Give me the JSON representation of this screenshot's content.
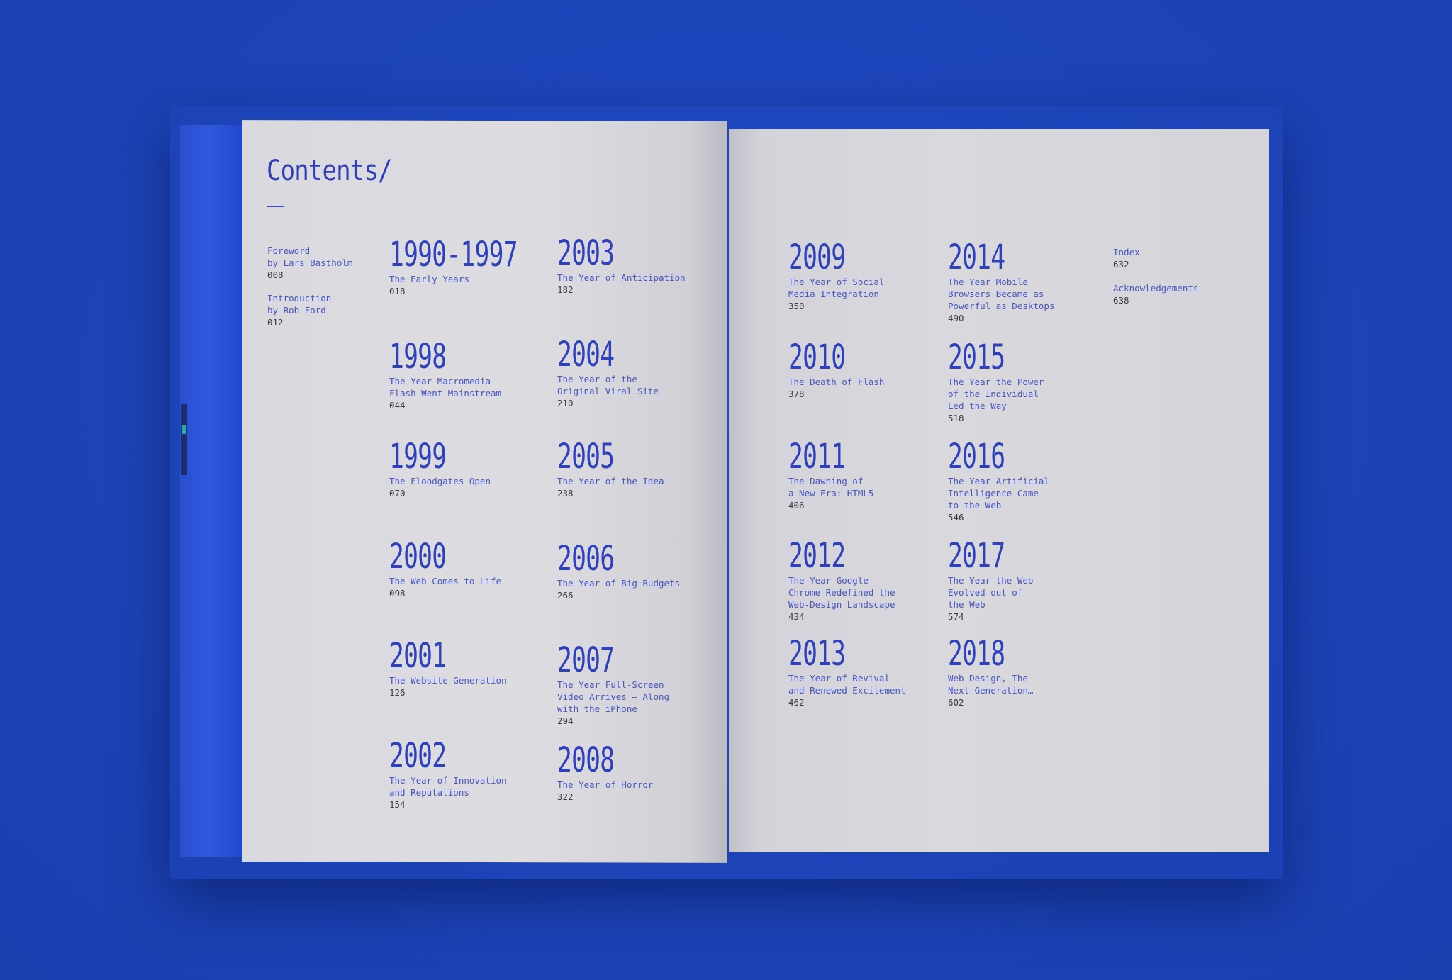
{
  "title": "Contents/",
  "front_matter": [
    {
      "label": "Foreword\nby Lars Bastholm",
      "page": "008"
    },
    {
      "label": "Introduction\nby Rob Ford",
      "page": "012"
    }
  ],
  "back_matter": [
    {
      "label": "Index",
      "page": "632"
    },
    {
      "label": "Acknowledgements",
      "page": "638"
    }
  ],
  "chapters": [
    {
      "year": "1990-1997",
      "title": "The Early Years",
      "page": "018"
    },
    {
      "year": "1998",
      "title": "The Year Macromedia\nFlash Went Mainstream",
      "page": "044"
    },
    {
      "year": "1999",
      "title": "The Floodgates Open",
      "page": "070"
    },
    {
      "year": "2000",
      "title": "The Web Comes to Life",
      "page": "098"
    },
    {
      "year": "2001",
      "title": "The Website Generation",
      "page": "126"
    },
    {
      "year": "2002",
      "title": "The Year of Innovation\nand Reputations",
      "page": "154"
    },
    {
      "year": "2003",
      "title": "The Year of Anticipation",
      "page": "182"
    },
    {
      "year": "2004",
      "title": "The Year of the\nOriginal Viral Site",
      "page": "210"
    },
    {
      "year": "2005",
      "title": "The Year of the Idea",
      "page": "238"
    },
    {
      "year": "2006",
      "title": "The Year of Big Budgets",
      "page": "266"
    },
    {
      "year": "2007",
      "title": "The Year Full-Screen\nVideo Arrives – Along\nwith the iPhone",
      "page": "294"
    },
    {
      "year": "2008",
      "title": "The Year of Horror",
      "page": "322"
    },
    {
      "year": "2009",
      "title": "The Year of Social\nMedia Integration",
      "page": "350"
    },
    {
      "year": "2010",
      "title": "The Death of Flash",
      "page": "378"
    },
    {
      "year": "2011",
      "title": "The Dawning of\na New Era: HTML5",
      "page": "406"
    },
    {
      "year": "2012",
      "title": "The Year Google\nChrome Redefined the\nWeb-Design Landscape",
      "page": "434"
    },
    {
      "year": "2013",
      "title": "The Year of Revival\nand Renewed Excitement",
      "page": "462"
    },
    {
      "year": "2014",
      "title": "The Year Mobile\nBrowsers Became as\nPowerful as Desktops",
      "page": "490"
    },
    {
      "year": "2015",
      "title": "The Year the Power\nof the Individual\nLed the Way",
      "page": "518"
    },
    {
      "year": "2016",
      "title": "The Year Artificial\nIntelligence Came\nto the Web",
      "page": "546"
    },
    {
      "year": "2017",
      "title": "The Year the Web\nEvolved out of\nthe Web",
      "page": "574"
    },
    {
      "year": "2018",
      "title": "Web Design, The\nNext Generation…",
      "page": "602"
    }
  ]
}
